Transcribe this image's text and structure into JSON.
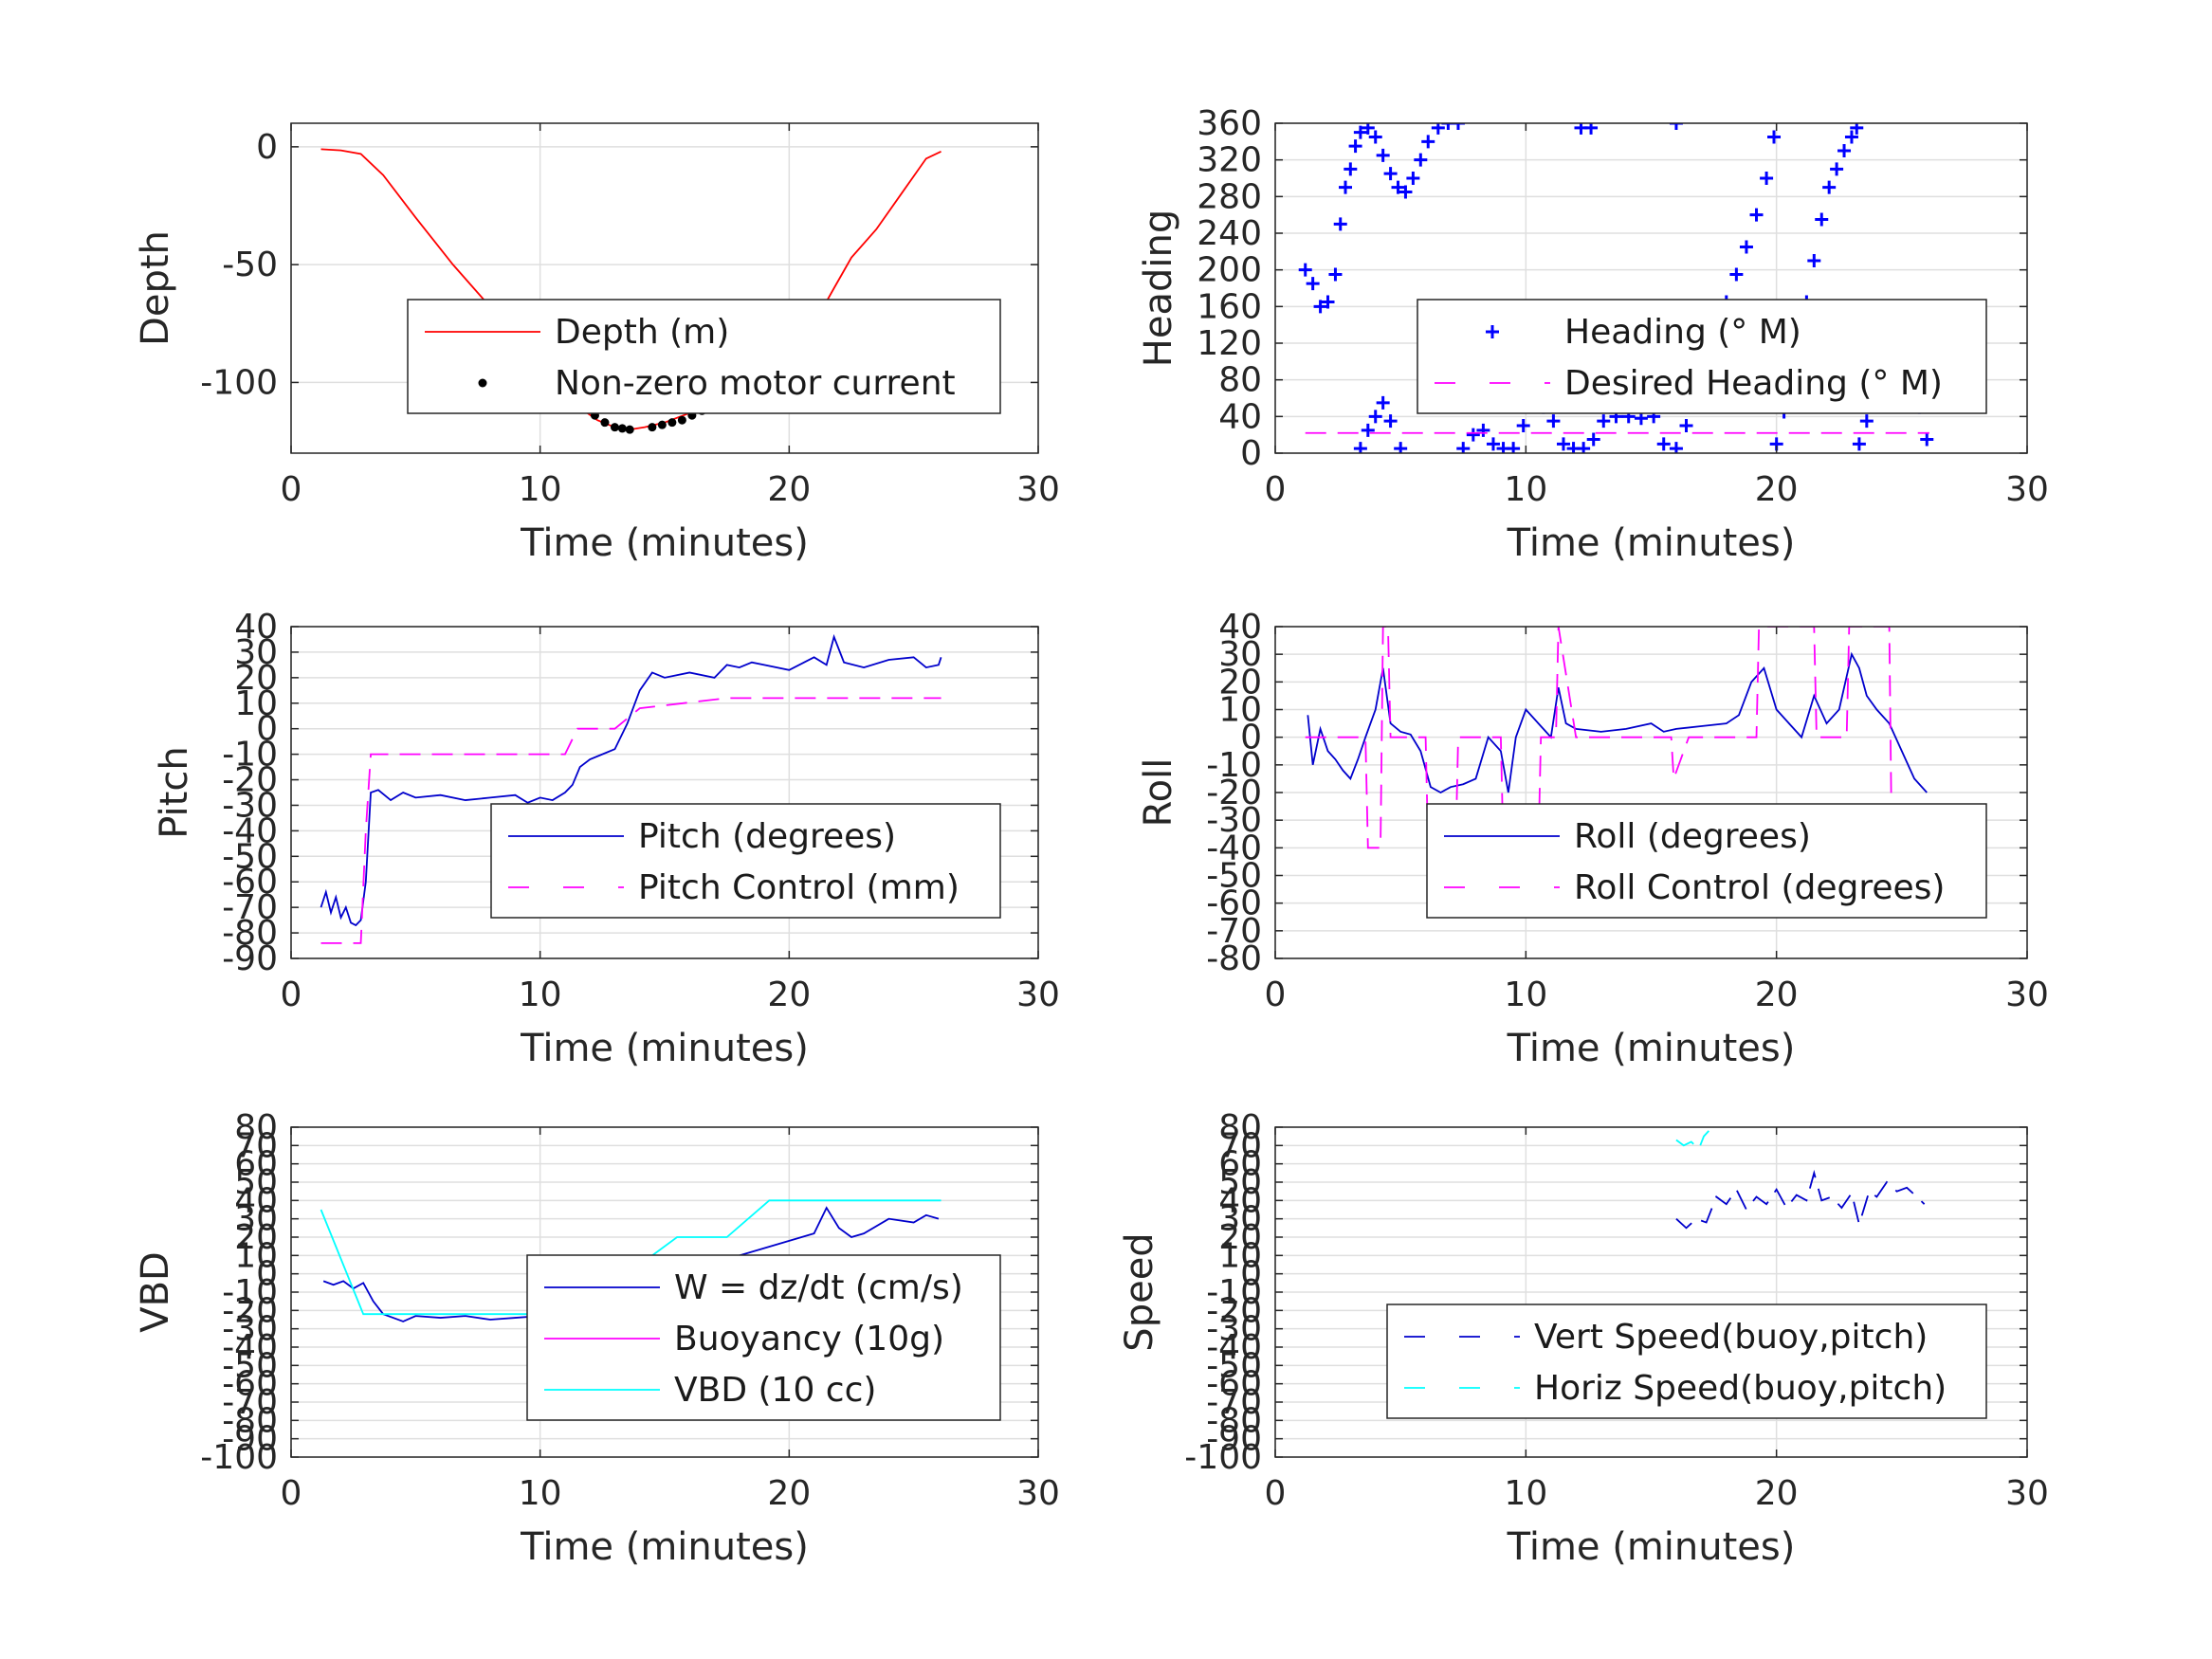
{
  "chart_data": [
    {
      "type": "line",
      "xlabel": "Time (minutes)",
      "ylabel": "Depth",
      "xlim": [
        0,
        30
      ],
      "ylim": [
        -130,
        10
      ],
      "xticks": [
        0,
        10,
        20,
        30
      ],
      "yticks": [
        0,
        -50,
        -100
      ],
      "ytick_labels": [
        "0",
        "-50",
        "-100"
      ],
      "grid": true,
      "legend_location": "lower-right",
      "series": [
        {
          "name": "Depth (m)",
          "color": "#ff0000",
          "style": "solid",
          "x": [
            1.2,
            2,
            2.8,
            3.7,
            5,
            6.5,
            8,
            9.5,
            10.5,
            11.5,
            12.3,
            13,
            13.6,
            14.2,
            15,
            16,
            17,
            18,
            19,
            20,
            21,
            21.8,
            22.5,
            23.5,
            24.5,
            25.5,
            26.1
          ],
          "y": [
            -1,
            -1.5,
            -3,
            -12,
            -30,
            -50,
            -68,
            -86,
            -98,
            -110,
            -116,
            -119,
            -120,
            -119,
            -117,
            -113,
            -107,
            -101,
            -94,
            -86,
            -75,
            -60,
            -47,
            -35,
            -20,
            -5,
            -2
          ]
        },
        {
          "name": "Non-zero motor current",
          "color": "#000000",
          "style": "dots",
          "x": [
            11.8,
            12.2,
            12.6,
            13.0,
            13.3,
            13.6,
            14.5,
            14.9,
            15.3,
            15.7,
            16.1,
            16.5,
            17.5,
            17.9,
            18.3,
            18.7,
            19.1
          ],
          "y": [
            -110,
            -114,
            -117,
            -119,
            -119.5,
            -120,
            -119,
            -118,
            -117,
            -116,
            -114,
            -112,
            -106,
            -103,
            -101,
            -98,
            -95
          ]
        }
      ]
    },
    {
      "type": "line",
      "xlabel": "Time (minutes)",
      "ylabel": "Heading",
      "xlim": [
        0,
        30
      ],
      "ylim": [
        0,
        360
      ],
      "xticks": [
        0,
        10,
        20,
        30
      ],
      "yticks": [
        0,
        40,
        80,
        120,
        160,
        200,
        240,
        280,
        320,
        360
      ],
      "ytick_labels": [
        "0",
        "40",
        "80",
        "120",
        "160",
        "200",
        "240",
        "280",
        "320",
        "360"
      ],
      "grid": true,
      "legend_location": "lower-right",
      "series": [
        {
          "name": "Heading (° M)",
          "color": "#0000ff",
          "style": "plus",
          "x": [
            1.2,
            1.5,
            1.8,
            2.1,
            2.4,
            2.6,
            2.8,
            3.0,
            3.2,
            3.4,
            3.7,
            4.0,
            4.3,
            4.6,
            4.9,
            5.2,
            5.5,
            5.8,
            6.1,
            6.5,
            6.9,
            7.3,
            3.4,
            3.7,
            4.0,
            4.3,
            4.6,
            5.0,
            7.5,
            7.9,
            8.3,
            8.7,
            9.1,
            9.5,
            9.9,
            10.3,
            10.7,
            11.1,
            11.5,
            11.9,
            12.3,
            12.7,
            13.1,
            13.6,
            14.1,
            14.6,
            15.1,
            15.5,
            16.0,
            16.4,
            16.8,
            17.2,
            17.6,
            18.0,
            18.4,
            18.8,
            19.2,
            19.6,
            19.9,
            12.2,
            12.6,
            16.0,
            20.0,
            20.3,
            20.6,
            20.9,
            21.2,
            21.5,
            21.8,
            22.1,
            22.4,
            22.7,
            23.0,
            23.2,
            23.3,
            23.6,
            23.9,
            24.2,
            24.5,
            24.8,
            25.1,
            25.4,
            25.7,
            26.0
          ],
          "y": [
            200,
            185,
            160,
            165,
            195,
            250,
            290,
            310,
            335,
            350,
            355,
            345,
            325,
            305,
            290,
            285,
            300,
            320,
            340,
            355,
            360,
            360,
            5,
            25,
            40,
            55,
            35,
            5,
            5,
            20,
            25,
            10,
            5,
            5,
            30,
            55,
            50,
            35,
            10,
            5,
            5,
            15,
            35,
            40,
            40,
            38,
            40,
            10,
            5,
            30,
            70,
            110,
            140,
            165,
            195,
            225,
            260,
            300,
            345,
            355,
            355,
            360,
            10,
            45,
            80,
            125,
            165,
            210,
            255,
            290,
            310,
            330,
            345,
            355,
            10,
            35,
            70,
            110,
            140,
            160,
            135,
            100,
            50,
            15
          ]
        },
        {
          "name": "Desired Heading (° M)",
          "color": "#ff00ff",
          "style": "dashed",
          "x": [
            1.2,
            26.1
          ],
          "y": [
            22,
            22
          ]
        }
      ]
    },
    {
      "type": "line",
      "xlabel": "Time (minutes)",
      "ylabel": "Pitch",
      "xlim": [
        0,
        30
      ],
      "ylim": [
        -90,
        40
      ],
      "xticks": [
        0,
        10,
        20,
        30
      ],
      "yticks": [
        -90,
        -80,
        -70,
        -60,
        -50,
        -40,
        -30,
        -20,
        -10,
        0,
        10,
        20,
        30,
        40
      ],
      "ytick_labels": [
        "-90",
        "-80",
        "-70",
        "-60",
        "-50",
        "-40",
        "-30",
        "-20",
        "-10",
        "0",
        "10",
        "20",
        "30",
        "40"
      ],
      "grid": true,
      "legend_location": "lower-right",
      "series": [
        {
          "name": "Pitch (degrees)",
          "color": "#0000cc",
          "style": "solid",
          "x": [
            1.2,
            1.4,
            1.6,
            1.8,
            2.0,
            2.2,
            2.4,
            2.6,
            2.8,
            3.0,
            3.2,
            3.5,
            4.0,
            4.5,
            5.0,
            6.0,
            7.0,
            8.0,
            9.0,
            9.5,
            10.0,
            10.5,
            11.0,
            11.3,
            11.6,
            12.0,
            12.5,
            13.0,
            13.5,
            14.0,
            14.5,
            15.0,
            16.0,
            17.0,
            17.5,
            18.0,
            18.5,
            19.0,
            20.0,
            21.0,
            21.5,
            21.8,
            22.2,
            23.0,
            24.0,
            25.0,
            25.5,
            26.0,
            26.1
          ],
          "y": [
            -70,
            -64,
            -72,
            -66,
            -74,
            -70,
            -76,
            -77,
            -75,
            -60,
            -25,
            -24,
            -28,
            -25,
            -27,
            -26,
            -28,
            -27,
            -26,
            -29,
            -27,
            -28,
            -25,
            -22,
            -15,
            -12,
            -10,
            -8,
            2,
            15,
            22,
            20,
            22,
            20,
            25,
            24,
            26,
            25,
            23,
            28,
            25,
            36,
            26,
            24,
            27,
            28,
            24,
            25,
            28
          ]
        },
        {
          "name": "Pitch Control (mm)",
          "color": "#ff00ff",
          "style": "dashed",
          "x": [
            1.2,
            2.8,
            3.0,
            3.2,
            11.0,
            11.5,
            13.0,
            14.0,
            17.5,
            26.1
          ],
          "y": [
            -84,
            -84,
            -40,
            -10,
            -10,
            0,
            0,
            8,
            12,
            12
          ]
        }
      ]
    },
    {
      "type": "line",
      "xlabel": "Time (minutes)",
      "ylabel": "Roll",
      "xlim": [
        0,
        30
      ],
      "ylim": [
        -80,
        40
      ],
      "xticks": [
        0,
        10,
        20,
        30
      ],
      "yticks": [
        -80,
        -70,
        -60,
        -50,
        -40,
        -30,
        -20,
        -10,
        0,
        10,
        20,
        30,
        40
      ],
      "ytick_labels": [
        "-80",
        "-70",
        "-60",
        "-50",
        "-40",
        "-30",
        "-20",
        "-10",
        "0",
        "10",
        "20",
        "30",
        "40"
      ],
      "grid": true,
      "legend_location": "lower-right",
      "series": [
        {
          "name": "Roll (degrees)",
          "color": "#0000cc",
          "style": "solid",
          "x": [
            1.3,
            1.5,
            1.8,
            2.1,
            2.4,
            2.7,
            3.0,
            3.3,
            3.6,
            4.0,
            4.3,
            4.6,
            5.0,
            5.4,
            5.8,
            6.2,
            6.6,
            7.0,
            7.5,
            8.0,
            8.5,
            9.0,
            9.3,
            9.6,
            10.0,
            10.5,
            11.0,
            11.3,
            11.6,
            12.0,
            13.0,
            14.0,
            15.0,
            15.5,
            16.0,
            17.0,
            18.0,
            18.5,
            19.0,
            19.5,
            20.0,
            20.5,
            21.0,
            21.5,
            22.0,
            22.5,
            23.0,
            23.3,
            23.6,
            24.0,
            24.5,
            25.0,
            25.5,
            26.0
          ],
          "y": [
            8,
            -10,
            3,
            -5,
            -8,
            -12,
            -15,
            -8,
            0,
            10,
            25,
            5,
            2,
            1,
            -5,
            -18,
            -20,
            -18,
            -17,
            -15,
            0,
            -5,
            -20,
            0,
            10,
            5,
            0,
            18,
            5,
            3,
            2,
            3,
            5,
            2,
            3,
            4,
            5,
            8,
            20,
            25,
            10,
            5,
            0,
            15,
            5,
            10,
            30,
            25,
            15,
            10,
            5,
            -5,
            -15,
            -20
          ]
        },
        {
          "name": "Roll Control (degrees)",
          "color": "#ff00ff",
          "style": "dashed",
          "x": [
            1.2,
            3.6,
            3.7,
            4.2,
            4.3,
            4.5,
            4.6,
            6.0,
            6.1,
            7.2,
            7.3,
            9.0,
            9.1,
            10.5,
            10.6,
            11.2,
            11.3,
            12.0,
            15.8,
            15.9,
            16.5,
            19.2,
            19.3,
            20.0,
            21.5,
            21.6,
            22.8,
            22.9,
            24.5,
            24.6,
            26.0
          ],
          "y": [
            0,
            0,
            -40,
            -40,
            40,
            40,
            0,
            0,
            -40,
            -40,
            0,
            0,
            -40,
            -40,
            0,
            0,
            40,
            0,
            0,
            -15,
            0,
            0,
            40,
            40,
            40,
            0,
            0,
            40,
            40,
            -40,
            -40
          ]
        }
      ]
    },
    {
      "type": "line",
      "xlabel": "Time (minutes)",
      "ylabel": "VBD",
      "xlim": [
        0,
        30
      ],
      "ylim": [
        -100,
        80
      ],
      "xticks": [
        0,
        10,
        20,
        30
      ],
      "yticks": [
        -100,
        -90,
        -80,
        -70,
        -60,
        -50,
        -40,
        -30,
        -20,
        -10,
        0,
        10,
        20,
        30,
        40,
        50,
        60,
        70,
        80
      ],
      "ytick_labels": [
        "-100",
        "-90",
        "-80",
        "-70",
        "-60",
        "-50",
        "-40",
        "-30",
        "-20",
        "-10",
        "0",
        "10",
        "20",
        "30",
        "40",
        "50",
        "60",
        "70",
        "80"
      ],
      "grid": true,
      "legend_location": "lower-right",
      "series": [
        {
          "name": "W = dz/dt (cm/s)",
          "color": "#0000cc",
          "style": "solid",
          "x": [
            1.3,
            1.7,
            2.1,
            2.5,
            2.9,
            3.3,
            3.7,
            4.1,
            4.5,
            5.0,
            6.0,
            7.0,
            8.0,
            9.0,
            10.0,
            11.0,
            11.5,
            12.0,
            12.4,
            12.8,
            13.2,
            13.6,
            14.0,
            15.0,
            16.0,
            17.0,
            18.0,
            19.0,
            20.0,
            21.0,
            21.5,
            22.0,
            22.5,
            23.0,
            24.0,
            25.0,
            25.5,
            26.0
          ],
          "y": [
            -4,
            -6,
            -4,
            -8,
            -5,
            -15,
            -22,
            -24,
            -26,
            -23,
            -24,
            -23,
            -25,
            -24,
            -23,
            -24,
            -22,
            -26,
            -18,
            -10,
            -5,
            -2,
            2,
            4,
            6,
            8,
            10,
            14,
            18,
            22,
            36,
            25,
            20,
            22,
            30,
            28,
            32,
            30
          ]
        },
        {
          "name": "Buoyancy (10g)",
          "color": "#ff00ff",
          "style": "solid",
          "x": [],
          "y": []
        },
        {
          "name": "VBD (10 cc)",
          "color": "#00ffff",
          "style": "solid",
          "x": [
            1.2,
            2.9,
            11.2,
            14.5,
            15.5,
            17.5,
            19.2,
            26.1
          ],
          "y": [
            35,
            -22,
            -22,
            10,
            20,
            20,
            40,
            40
          ]
        }
      ]
    },
    {
      "type": "line",
      "xlabel": "Time (minutes)",
      "ylabel": "Speed",
      "xlim": [
        0,
        30
      ],
      "ylim": [
        -100,
        80
      ],
      "xticks": [
        0,
        10,
        20,
        30
      ],
      "yticks": [
        -100,
        -90,
        -80,
        -70,
        -60,
        -50,
        -40,
        -30,
        -20,
        -10,
        0,
        10,
        20,
        30,
        40,
        50,
        60,
        70,
        80
      ],
      "ytick_labels": [
        "-100",
        "-90",
        "-80",
        "-70",
        "-60",
        "-50",
        "-40",
        "-30",
        "-20",
        "-10",
        "0",
        "10",
        "20",
        "30",
        "40",
        "50",
        "60",
        "70",
        "80"
      ],
      "grid": true,
      "legend_location": "lower-right",
      "series": [
        {
          "name": "Vert Speed(buoy,pitch)",
          "color": "#0000cc",
          "style": "dashed",
          "x": [
            16.0,
            16.4,
            16.8,
            17.2,
            17.6,
            18.0,
            18.4,
            18.8,
            19.2,
            19.6,
            20.0,
            20.4,
            20.8,
            21.2,
            21.5,
            21.8,
            22.2,
            22.6,
            23.0,
            23.3,
            23.7,
            24.0,
            24.4,
            24.8,
            25.2,
            25.6,
            25.9
          ],
          "y": [
            30,
            25,
            30,
            28,
            42,
            38,
            46,
            35,
            42,
            38,
            46,
            36,
            43,
            40,
            55,
            40,
            42,
            36,
            44,
            27,
            45,
            42,
            50,
            45,
            47,
            42,
            38
          ]
        },
        {
          "name": "Horiz Speed(buoy,pitch)",
          "color": "#00ffff",
          "style": "dashed",
          "x": [
            16.0,
            16.3,
            16.6,
            16.9,
            17.1,
            17.3
          ],
          "y": [
            73,
            70,
            72,
            68,
            75,
            78
          ]
        }
      ]
    }
  ]
}
